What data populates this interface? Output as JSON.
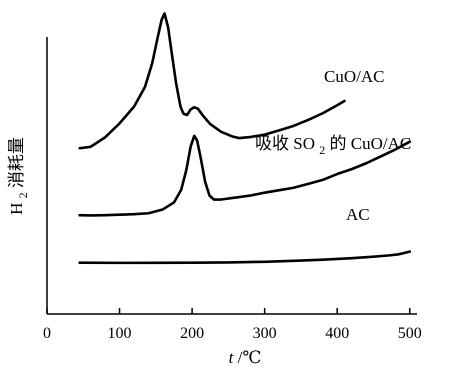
{
  "chart_data": {
    "type": "line",
    "xlabel_prefix": "t",
    "xlabel_unit": "/℃",
    "ylabel_base": "H",
    "ylabel_sub": "2",
    "ylabel_text": "消耗量",
    "xlim": [
      0,
      510
    ],
    "xticks": [
      0,
      100,
      200,
      300,
      400,
      500
    ],
    "grid": false,
    "yticks_shown": false,
    "series": [
      {
        "name": "CuO/AC",
        "label": "CuO/AC",
        "x": [
          45,
          60,
          80,
          100,
          120,
          135,
          145,
          152,
          158,
          162,
          167,
          172,
          178,
          184,
          188,
          193,
          198,
          203,
          208,
          215,
          225,
          240,
          255,
          265,
          280,
          300,
          320,
          340,
          360,
          380,
          400,
          410
        ],
        "y": [
          0.125,
          0.145,
          0.28,
          0.48,
          0.72,
          1.0,
          1.34,
          1.68,
          1.96,
          2.05,
          1.85,
          1.48,
          1.05,
          0.72,
          0.62,
          0.6,
          0.68,
          0.71,
          0.69,
          0.59,
          0.47,
          0.36,
          0.295,
          0.27,
          0.285,
          0.32,
          0.38,
          0.445,
          0.53,
          0.625,
          0.74,
          0.8
        ]
      },
      {
        "name": "吸收 SO2的 CuO/AC",
        "label_prefix": "吸收 SO",
        "label_sub": "2",
        "label_suffix": "的 CuO/AC",
        "x": [
          45,
          60,
          80,
          100,
          120,
          140,
          160,
          175,
          185,
          192,
          198,
          203,
          207,
          212,
          218,
          224,
          230,
          240,
          260,
          280,
          300,
          320,
          340,
          360,
          380,
          400,
          420,
          440,
          460,
          480,
          500
        ],
        "y": [
          0.1,
          0.098,
          0.1,
          0.105,
          0.11,
          0.12,
          0.16,
          0.23,
          0.36,
          0.56,
          0.8,
          0.91,
          0.86,
          0.68,
          0.44,
          0.3,
          0.26,
          0.26,
          0.28,
          0.3,
          0.33,
          0.355,
          0.38,
          0.42,
          0.46,
          0.52,
          0.57,
          0.63,
          0.7,
          0.77,
          0.85
        ]
      },
      {
        "name": "AC",
        "label": "AC",
        "x": [
          45,
          100,
          150,
          200,
          250,
          300,
          350,
          380,
          420,
          450,
          470,
          485,
          495,
          500
        ],
        "y": [
          0.055,
          0.052,
          0.053,
          0.055,
          0.06,
          0.07,
          0.09,
          0.105,
          0.13,
          0.155,
          0.175,
          0.195,
          0.225,
          0.24
        ]
      }
    ]
  }
}
